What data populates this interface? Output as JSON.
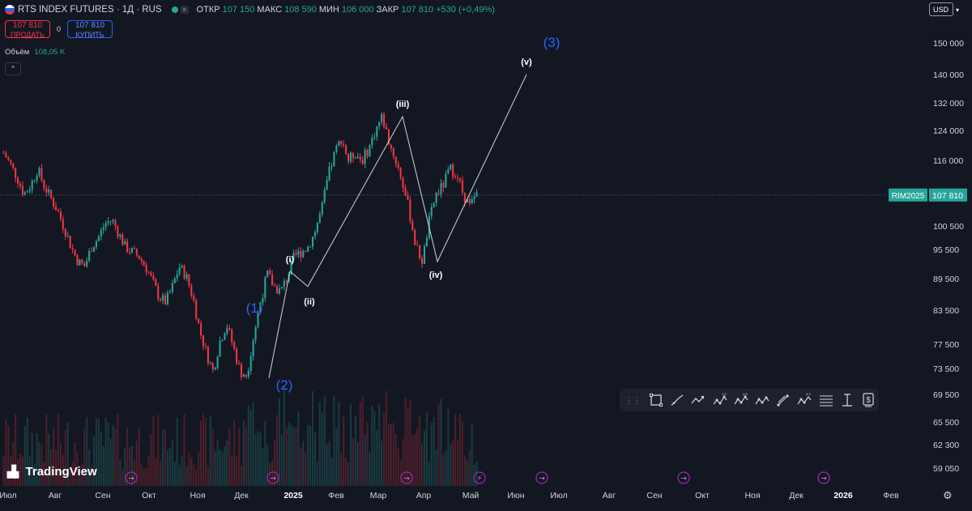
{
  "header": {
    "title": "RTS INDEX FUTURES · 1Д · RUS",
    "ohlc": [
      {
        "k": "ОТКР",
        "v": "107 150"
      },
      {
        "k": "МАКС",
        "v": "108 590"
      },
      {
        "k": "МИН",
        "v": "106 000"
      },
      {
        "k": "ЗАКР",
        "v": "107 810"
      }
    ],
    "change": "+530 (+0,49%)"
  },
  "trade": {
    "sell_price": "107 810",
    "sell_label": "ПРОДАТЬ",
    "spread": "0",
    "buy_price": "107 810",
    "buy_label": "КУПИТЬ"
  },
  "volume": {
    "label": "Объём",
    "value": "108,05 K"
  },
  "currency": "USD",
  "collapse_glyph": "⌃",
  "logo_text": "TradingView",
  "gear_glyph": "⚙",
  "colors": {
    "background": "#131722",
    "up": "#26a69a",
    "down": "#f23645",
    "wave_label": "#2962ff",
    "price_tag": "#26a69a"
  },
  "price_axis": {
    "ticks": [
      "150 000",
      "140 000",
      "132 000",
      "124 000",
      "116 000",
      "100 500",
      "95 500",
      "89 500",
      "83 500",
      "77 500",
      "73 500",
      "69 500",
      "65 500",
      "62 300",
      "59 050"
    ],
    "tick_values": [
      150000,
      140000,
      132000,
      124000,
      116000,
      100500,
      95500,
      89500,
      83500,
      77500,
      73500,
      69500,
      65500,
      62300,
      59050
    ],
    "symbol_tag": "RIM2025",
    "last_price": "107 810",
    "last_value": 107810
  },
  "time_axis": {
    "ticks": [
      "Июл",
      "Авг",
      "Сен",
      "Окт",
      "Ноя",
      "Дек",
      "2025",
      "Фев",
      "Мар",
      "Апр",
      "Май",
      "Июн",
      "Июл",
      "Авг",
      "Сен",
      "Окт",
      "Ноя",
      "Дек",
      "2026",
      "Фев"
    ],
    "bold": [
      "2025",
      "2026"
    ]
  },
  "wave_labels": {
    "primary": [
      "(1)",
      "(2)",
      "(3)"
    ],
    "minor": [
      "(i)",
      "(ii)",
      "(iii)",
      "(iv)",
      "(v)"
    ]
  },
  "toolbar_icons": [
    "grip-icon",
    "rectangle-icon",
    "brush-icon",
    "path-icon",
    "abcd-pattern-icon",
    "elliott-wave-icon",
    "triangle-pattern-icon",
    "parallel-channel-icon",
    "xabcd-pattern-icon",
    "fib-retracement-icon",
    "text-cursor-icon",
    "price-note-icon"
  ],
  "event_icons": [
    "dividend-icon",
    "dividend-icon",
    "dividend-icon",
    "flash-icon",
    "dividend-icon",
    "dividend-icon",
    "dividend-icon"
  ],
  "chart_data": {
    "type": "candlestick",
    "instrument": "RTS INDEX FUTURES",
    "interval": "1Д",
    "trend_points": [
      {
        "x": "Дек",
        "y": 72000
      },
      {
        "x": "Дек",
        "y": 91000
      },
      {
        "x": "Янв",
        "y": 88000
      },
      {
        "x": "Мар",
        "y": 128000
      },
      {
        "x": "Апр",
        "y": 93000
      },
      {
        "x": "Июн",
        "y": 140000
      }
    ],
    "close_path": [
      118000,
      115000,
      112000,
      108000,
      110000,
      114000,
      110000,
      107000,
      104000,
      100000,
      96000,
      93000,
      92000,
      96000,
      98000,
      101000,
      102000,
      99000,
      96000,
      95000,
      94000,
      92000,
      89000,
      86000,
      85000,
      88000,
      92000,
      90000,
      86000,
      80000,
      76000,
      73000,
      78000,
      81000,
      77000,
      73000,
      72500,
      79000,
      85000,
      90500,
      88000,
      87000,
      90000,
      94000,
      95000,
      96000,
      99000,
      104000,
      112000,
      118000,
      122000,
      116000,
      118000,
      116000,
      119000,
      124000,
      128000,
      121000,
      116000,
      111000,
      104000,
      96000,
      93000,
      102000,
      108000,
      110000,
      114000,
      113000,
      108000,
      105000,
      107810
    ]
  }
}
